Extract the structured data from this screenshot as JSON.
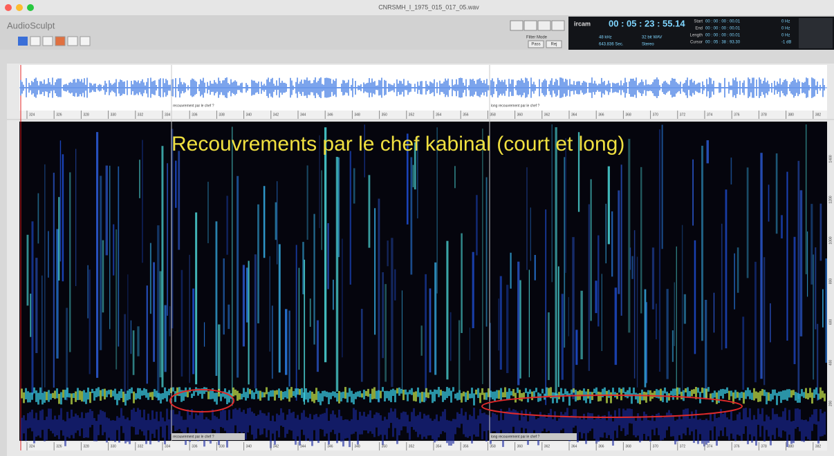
{
  "window": {
    "title": "CNRSMH_I_1975_015_017_05.wav"
  },
  "toolbar": {
    "app_name": "AudioSculpt",
    "filter_mode": "Filter Mode",
    "pass": "Pass",
    "reject": "Rej"
  },
  "display": {
    "timecode": "00 : 05 : 23 : 55.14",
    "sample_rate": "48 kHz",
    "bit_depth": "32 bit WAV",
    "duration": "643.836 Sec.",
    "channels": "Stereo",
    "selection": [
      {
        "label": "Start",
        "value": "00 : 00 : 00 : 00.01",
        "freq": "0 Hz"
      },
      {
        "label": "End",
        "value": "00 : 00 : 00 : 00.01",
        "freq": "0 Hz"
      },
      {
        "label": "Length",
        "value": "00 : 00 : 00 : 00.01",
        "freq": "0 Hz"
      },
      {
        "label": "Cursor",
        "value": "00 : 05 : 38 : 93.30",
        "freq": "-1 dB"
      }
    ]
  },
  "markers": [
    "recouvrement par le chef ?",
    "long recouvrement par le chef ?"
  ],
  "annotation": "Recouvrements par le chef kabinal (court et long)",
  "time_axis": [
    "324",
    "326",
    "328",
    "330",
    "332",
    "334",
    "336",
    "338",
    "340",
    "342",
    "344",
    "346",
    "348",
    "350",
    "352",
    "354",
    "356",
    "358",
    "360",
    "362",
    "364",
    "366",
    "368",
    "370",
    "372",
    "374",
    "376",
    "378",
    "380",
    "382"
  ],
  "freq_axis": [
    "1400",
    "1200",
    "1000",
    "800",
    "600",
    "400",
    "200"
  ]
}
